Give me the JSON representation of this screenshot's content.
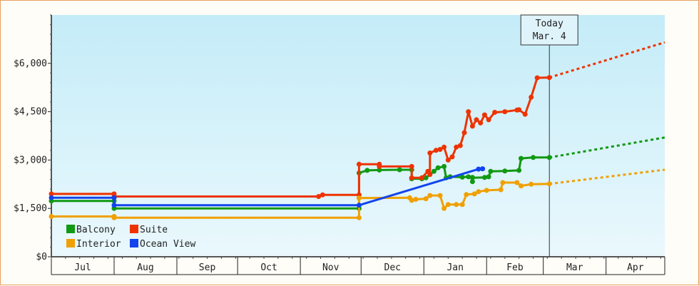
{
  "chart_data": {
    "type": "line",
    "title": "",
    "xlabel": "",
    "ylabel": "",
    "ylim": [
      0,
      7500
    ],
    "x_axis": {
      "months": [
        "Jul",
        "Aug",
        "Sep",
        "Oct",
        "Nov",
        "Dec",
        "Jan",
        "Feb",
        "Mar",
        "Apr"
      ],
      "start": "2024-07-01",
      "end": "2025-04-30"
    },
    "y_ticks": [
      {
        "value": 0,
        "label": "$0"
      },
      {
        "value": 1500,
        "label": "$1,500"
      },
      {
        "value": 3000,
        "label": "$3,000"
      },
      {
        "value": 4500,
        "label": "$4,500"
      },
      {
        "value": 6000,
        "label": "$6,000"
      }
    ],
    "today": {
      "date": "2025-03-04",
      "label_line1": "Today",
      "label_line2": "Mar. 4"
    },
    "grid": false,
    "legend_position": "bottom-left",
    "series": [
      {
        "name": "Balcony",
        "color": "#119911",
        "points": [
          [
            "2024-07-01",
            1730
          ],
          [
            "2024-08-01",
            1730
          ],
          [
            "2024-08-01",
            1500
          ],
          [
            "2024-11-30",
            1500
          ],
          [
            "2024-11-30",
            2600
          ],
          [
            "2024-12-04",
            2680
          ],
          [
            "2024-12-10",
            2690
          ],
          [
            "2024-12-20",
            2700
          ],
          [
            "2024-12-26",
            2700
          ],
          [
            "2024-12-26",
            2420
          ],
          [
            "2024-12-31",
            2420
          ],
          [
            "2025-01-02",
            2450
          ],
          [
            "2025-01-06",
            2650
          ],
          [
            "2025-01-08",
            2760
          ],
          [
            "2025-01-11",
            2800
          ],
          [
            "2025-01-12",
            2450
          ],
          [
            "2025-01-14",
            2480
          ],
          [
            "2025-01-20",
            2470
          ],
          [
            "2025-01-23",
            2480
          ],
          [
            "2025-01-25",
            2460
          ],
          [
            "2025-01-25",
            2330
          ],
          [
            "2025-01-25",
            2450
          ],
          [
            "2025-01-31",
            2460
          ],
          [
            "2025-02-02",
            2480
          ],
          [
            "2025-02-03",
            2650
          ],
          [
            "2025-02-10",
            2660
          ],
          [
            "2025-02-17",
            2680
          ],
          [
            "2025-02-18",
            3050
          ],
          [
            "2025-02-24",
            3080
          ],
          [
            "2025-03-04",
            3080
          ]
        ],
        "forecast": [
          [
            "2025-03-04",
            3080
          ],
          [
            "2025-04-30",
            3700
          ]
        ]
      },
      {
        "name": "Suite",
        "color": "#ee3300",
        "points": [
          [
            "2024-07-01",
            1950
          ],
          [
            "2024-08-01",
            1950
          ],
          [
            "2024-08-01",
            1870
          ],
          [
            "2024-11-10",
            1870
          ],
          [
            "2024-11-12",
            1920
          ],
          [
            "2024-11-30",
            1920
          ],
          [
            "2024-11-30",
            2870
          ],
          [
            "2024-12-10",
            2870
          ],
          [
            "2024-12-10",
            2800
          ],
          [
            "2024-12-26",
            2800
          ],
          [
            "2024-12-26",
            2450
          ],
          [
            "2024-12-31",
            2450
          ],
          [
            "2025-01-03",
            2650
          ],
          [
            "2025-01-04",
            2550
          ],
          [
            "2025-01-04",
            3220
          ],
          [
            "2025-01-07",
            3300
          ],
          [
            "2025-01-09",
            3330
          ],
          [
            "2025-01-11",
            3400
          ],
          [
            "2025-01-13",
            3000
          ],
          [
            "2025-01-15",
            3100
          ],
          [
            "2025-01-17",
            3400
          ],
          [
            "2025-01-19",
            3450
          ],
          [
            "2025-01-21",
            3850
          ],
          [
            "2025-01-23",
            4500
          ],
          [
            "2025-01-25",
            4050
          ],
          [
            "2025-01-27",
            4250
          ],
          [
            "2025-01-29",
            4150
          ],
          [
            "2025-01-31",
            4400
          ],
          [
            "2025-02-02",
            4250
          ],
          [
            "2025-02-05",
            4480
          ],
          [
            "2025-02-10",
            4500
          ],
          [
            "2025-02-16",
            4550
          ],
          [
            "2025-02-17",
            4560
          ],
          [
            "2025-02-20",
            4420
          ],
          [
            "2025-02-23",
            4950
          ],
          [
            "2025-02-26",
            5550
          ],
          [
            "2025-03-04",
            5560
          ]
        ],
        "forecast": [
          [
            "2025-03-04",
            5560
          ],
          [
            "2025-04-30",
            6650
          ]
        ]
      },
      {
        "name": "Interior",
        "color": "#f0a000",
        "points": [
          [
            "2024-07-01",
            1250
          ],
          [
            "2024-08-01",
            1250
          ],
          [
            "2024-08-01",
            1210
          ],
          [
            "2024-11-30",
            1210
          ],
          [
            "2024-11-30",
            1820
          ],
          [
            "2024-12-25",
            1830
          ],
          [
            "2024-12-26",
            1750
          ],
          [
            "2024-12-28",
            1780
          ],
          [
            "2025-01-02",
            1800
          ],
          [
            "2025-01-04",
            1900
          ],
          [
            "2025-01-09",
            1900
          ],
          [
            "2025-01-11",
            1500
          ],
          [
            "2025-01-13",
            1620
          ],
          [
            "2025-01-17",
            1620
          ],
          [
            "2025-01-20",
            1620
          ],
          [
            "2025-01-22",
            1930
          ],
          [
            "2025-01-26",
            1950
          ],
          [
            "2025-01-28",
            2020
          ],
          [
            "2025-02-01",
            2060
          ],
          [
            "2025-02-08",
            2080
          ],
          [
            "2025-02-09",
            2300
          ],
          [
            "2025-02-16",
            2300
          ],
          [
            "2025-02-18",
            2200
          ],
          [
            "2025-02-23",
            2250
          ],
          [
            "2025-03-04",
            2260
          ]
        ],
        "forecast": [
          [
            "2025-03-04",
            2260
          ],
          [
            "2025-04-30",
            2700
          ]
        ]
      },
      {
        "name": "Ocean View",
        "color": "#1144ee",
        "points": [
          [
            "2024-07-01",
            1830
          ],
          [
            "2024-08-01",
            1830
          ],
          [
            "2024-08-01",
            1600
          ],
          [
            "2024-11-30",
            1600
          ],
          [
            "2025-01-28",
            2720
          ],
          [
            "2025-01-30",
            2730
          ]
        ],
        "forecast": []
      }
    ]
  }
}
